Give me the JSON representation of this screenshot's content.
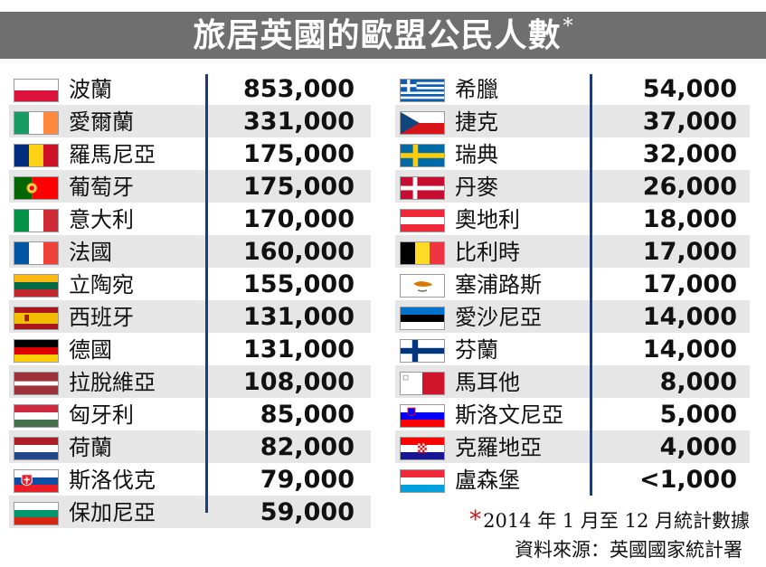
{
  "header": {
    "title": "旅居英國的歐盟公民人數",
    "title_mark": "*"
  },
  "chart_data": {
    "type": "table",
    "title": "旅居英國的歐盟公民人數",
    "columns": [
      {
        "rows": [
          {
            "country": "波蘭",
            "value_label": "853,000",
            "value": 853000,
            "flag": "poland-flag-icon"
          },
          {
            "country": "愛爾蘭",
            "value_label": "331,000",
            "value": 331000,
            "flag": "ireland-flag-icon"
          },
          {
            "country": "羅馬尼亞",
            "value_label": "175,000",
            "value": 175000,
            "flag": "romania-flag-icon"
          },
          {
            "country": "葡萄牙",
            "value_label": "175,000",
            "value": 175000,
            "flag": "portugal-flag-icon"
          },
          {
            "country": "意大利",
            "value_label": "170,000",
            "value": 170000,
            "flag": "italy-flag-icon"
          },
          {
            "country": "法國",
            "value_label": "160,000",
            "value": 160000,
            "flag": "france-flag-icon"
          },
          {
            "country": "立陶宛",
            "value_label": "155,000",
            "value": 155000,
            "flag": "lithuania-flag-icon"
          },
          {
            "country": "西班牙",
            "value_label": "131,000",
            "value": 131000,
            "flag": "spain-flag-icon"
          },
          {
            "country": "德國",
            "value_label": "131,000",
            "value": 131000,
            "flag": "germany-flag-icon"
          },
          {
            "country": "拉脫維亞",
            "value_label": "108,000",
            "value": 108000,
            "flag": "latvia-flag-icon"
          },
          {
            "country": "匈牙利",
            "value_label": "85,000",
            "value": 85000,
            "flag": "hungary-flag-icon"
          },
          {
            "country": "荷蘭",
            "value_label": "82,000",
            "value": 82000,
            "flag": "netherlands-flag-icon"
          },
          {
            "country": "斯洛伐克",
            "value_label": "79,000",
            "value": 79000,
            "flag": "slovakia-flag-icon"
          },
          {
            "country": "保加尼亞",
            "value_label": "59,000",
            "value": 59000,
            "flag": "bulgaria-flag-icon"
          }
        ]
      },
      {
        "rows": [
          {
            "country": "希臘",
            "value_label": "54,000",
            "value": 54000,
            "flag": "greece-flag-icon"
          },
          {
            "country": "捷克",
            "value_label": "37,000",
            "value": 37000,
            "flag": "czech-flag-icon"
          },
          {
            "country": "瑞典",
            "value_label": "32,000",
            "value": 32000,
            "flag": "sweden-flag-icon"
          },
          {
            "country": "丹麥",
            "value_label": "26,000",
            "value": 26000,
            "flag": "denmark-flag-icon"
          },
          {
            "country": "奧地利",
            "value_label": "18,000",
            "value": 18000,
            "flag": "austria-flag-icon"
          },
          {
            "country": "比利時",
            "value_label": "17,000",
            "value": 17000,
            "flag": "belgium-flag-icon"
          },
          {
            "country": "塞浦路斯",
            "value_label": "17,000",
            "value": 17000,
            "flag": "cyprus-flag-icon"
          },
          {
            "country": "愛沙尼亞",
            "value_label": "14,000",
            "value": 14000,
            "flag": "estonia-flag-icon"
          },
          {
            "country": "芬蘭",
            "value_label": "14,000",
            "value": 14000,
            "flag": "finland-flag-icon"
          },
          {
            "country": "馬耳他",
            "value_label": "8,000",
            "value": 8000,
            "flag": "malta-flag-icon"
          },
          {
            "country": "斯洛文尼亞",
            "value_label": "5,000",
            "value": 5000,
            "flag": "slovenia-flag-icon"
          },
          {
            "country": "克羅地亞",
            "value_label": "4,000",
            "value": 4000,
            "flag": "croatia-flag-icon"
          },
          {
            "country": "盧森堡",
            "value_label": "<1,000",
            "value": 1000,
            "flag": "luxembourg-flag-icon"
          }
        ]
      }
    ]
  },
  "footnote": {
    "mark": "*",
    "text": "2014 年 1 月至 12 月統計數據"
  },
  "source": "資料來源：英國國家統計署",
  "colors": {
    "header_bg": "#6f6f6f",
    "divider": "#1c3b78",
    "shade": "#e6e6e6",
    "footnote_mark": "#d11b1b"
  }
}
